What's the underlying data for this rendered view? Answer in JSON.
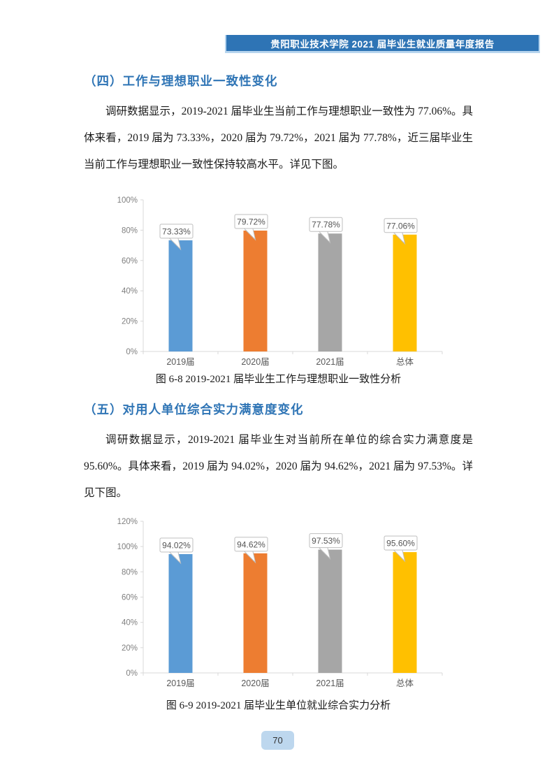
{
  "page": {
    "header_banner": "贵阳职业技术学院 2021 届毕业生就业质量年度报告",
    "page_number": "70"
  },
  "sections": [
    {
      "heading": "（四）工作与理想职业一致性变化",
      "paragraph": "调研数据显示，2019-2021 届毕业生当前工作与理想职业一致性为 77.06%。具体来看，2019 届为 73.33%，2020 届为 79.72%，2021 届为 77.78%，近三届毕业生当前工作与理想职业一致性保持较高水平。详见下图。"
    },
    {
      "heading": "（五）对用人单位综合实力满意度变化",
      "paragraph": "调研数据显示，2019-2021 届毕业生对当前所在单位的综合实力满意度是 95.60%。具体来看，2019 届为 94.02%，2020 届为 94.62%，2021 届为 97.53%。详见下图。"
    }
  ],
  "colors": {
    "banner_bg": "#2E74B5",
    "banner_border": "#B7D5EE",
    "heading_text": "#2E74B5",
    "page_badge_bg": "#BDD7EE",
    "axis": "#D9D9D9",
    "callout_border": "#BFBFBF"
  },
  "chart_data": [
    {
      "type": "bar",
      "title": "图 6-8 2019-2021 届毕业生工作与理想职业一致性分析",
      "categories": [
        "2019届",
        "2020届",
        "2021届",
        "总体"
      ],
      "values": [
        73.33,
        79.72,
        77.78,
        77.06
      ],
      "data_labels": [
        "73.33%",
        "79.72%",
        "77.78%",
        "77.06%"
      ],
      "xlabel": "",
      "ylabel": "",
      "ylim": [
        0,
        100
      ],
      "ytick_step": 20,
      "ytick_labels": [
        "0%",
        "20%",
        "40%",
        "60%",
        "80%",
        "100%"
      ],
      "bar_colors": [
        "#5B9BD5",
        "#ED7D31",
        "#A6A6A6",
        "#FFC000"
      ],
      "grid": false,
      "legend": "none"
    },
    {
      "type": "bar",
      "title": "图 6-9 2019-2021 届毕业生单位就业综合实力分析",
      "categories": [
        "2019届",
        "2020届",
        "2021届",
        "总体"
      ],
      "values": [
        94.02,
        94.62,
        97.53,
        95.6
      ],
      "data_labels": [
        "94.02%",
        "94.62%",
        "97.53%",
        "95.60%"
      ],
      "xlabel": "",
      "ylabel": "",
      "ylim": [
        0,
        120
      ],
      "ytick_step": 20,
      "ytick_labels": [
        "0%",
        "20%",
        "40%",
        "60%",
        "80%",
        "100%",
        "120%"
      ],
      "bar_colors": [
        "#5B9BD5",
        "#ED7D31",
        "#A6A6A6",
        "#FFC000"
      ],
      "grid": false,
      "legend": "none"
    }
  ]
}
